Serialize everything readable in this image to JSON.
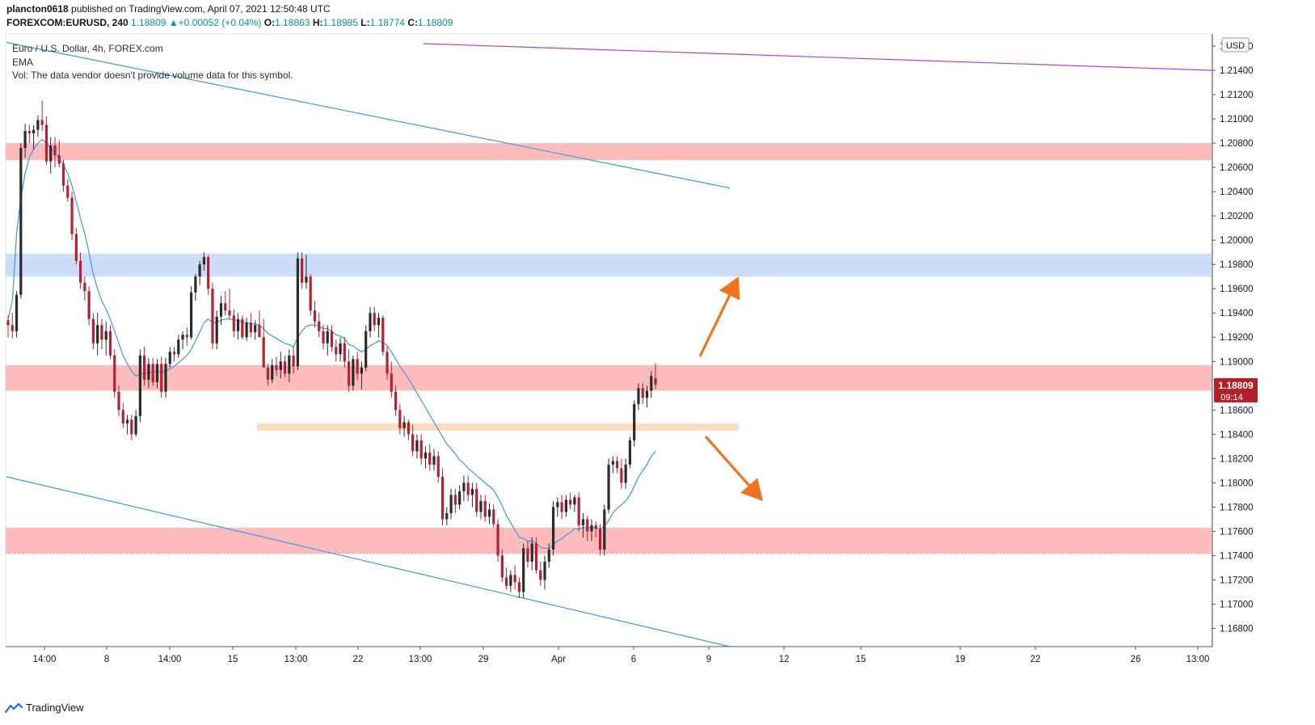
{
  "header": {
    "line1": "plancton0618 published on TradingView.com, April 07, 2021 12:50:48 UTC",
    "symbol": "FOREXCOM:EURUSD, 240",
    "last": "1.18809",
    "change": "+0.00052 (+0.04%)",
    "o_label": "O:",
    "o": "1.18863",
    "h_label": "H:",
    "h": "1.18985",
    "l_label": "L:",
    "l": "1.18774",
    "c_label": "C:",
    "c": "1.18809"
  },
  "legend": {
    "title": "Euro / U.S. Dollar, 4h, FOREX.com",
    "ema": "EMA",
    "vol": "Vol: The data vendor doesn't provide volume data for this symbol."
  },
  "price_badge": {
    "price": "1.18809",
    "countdown": "09:14"
  },
  "currency": "USD",
  "brand": "TradingView",
  "colors": {
    "up_candle": "#2b2b2b",
    "down_candle": "#b22234",
    "ema": "#3a9be8",
    "channel": "#3a9be8",
    "purple_line": "#b041d8",
    "red_zone": "#fdb7b7",
    "blue_zone": "#c9dbf8",
    "orange_zone": "#fcdcbc",
    "arrow": "#f07320",
    "badge": "#b3202a"
  },
  "chart_data": {
    "type": "candlestick",
    "symbol": "FOREXCOM:EURUSD",
    "interval": "240",
    "ylim": [
      1.1665,
      1.217
    ],
    "y_ticks": [
      "1.21600",
      "1.21400",
      "1.21200",
      "1.21000",
      "1.20800",
      "1.20600",
      "1.20400",
      "1.20200",
      "1.20000",
      "1.19800",
      "1.19600",
      "1.19400",
      "1.19200",
      "1.19000",
      "1.18600",
      "1.18400",
      "1.18200",
      "1.18000",
      "1.17800",
      "1.17600",
      "1.17400",
      "1.17200",
      "1.17000",
      "1.16800"
    ],
    "x_ticks": [
      "14:00",
      "8",
      "14:00",
      "15",
      "13:00",
      "22",
      "13:00",
      "29",
      "Apr",
      "6",
      "9",
      "12",
      "15",
      "19",
      "22",
      "26",
      "13:00"
    ],
    "last_price": 1.18809,
    "zones": [
      {
        "color": "red",
        "from": 1.2066,
        "to": 1.208
      },
      {
        "color": "blue",
        "from": 1.197,
        "to": 1.1989
      },
      {
        "color": "red",
        "from": 1.1876,
        "to": 1.1897
      },
      {
        "color": "orange",
        "from": 1.1843,
        "to": 1.1849
      },
      {
        "color": "red",
        "from": 1.1742,
        "to": 1.1763
      }
    ],
    "candles": [
      [
        1.1934,
        1.1938,
        1.192,
        1.193
      ],
      [
        1.193,
        1.194,
        1.1919,
        1.1925
      ],
      [
        1.1925,
        1.1958,
        1.192,
        1.1955
      ],
      [
        1.1955,
        1.208,
        1.1952,
        1.2076
      ],
      [
        1.2076,
        1.2096,
        1.2068,
        1.209
      ],
      [
        1.209,
        1.2095,
        1.208,
        1.2088
      ],
      [
        1.2088,
        1.2095,
        1.2075,
        1.2091
      ],
      [
        1.2091,
        1.2103,
        1.2085,
        1.2099
      ],
      [
        1.2099,
        1.2115,
        1.209,
        1.2095
      ],
      [
        1.2095,
        1.2102,
        1.2062,
        1.2065
      ],
      [
        1.2065,
        1.2085,
        1.2055,
        1.2078
      ],
      [
        1.2078,
        1.2085,
        1.206,
        1.207
      ],
      [
        1.207,
        1.2082,
        1.206,
        1.2063
      ],
      [
        1.2063,
        1.2066,
        1.204,
        1.2045
      ],
      [
        1.2045,
        1.205,
        1.2032,
        1.2035
      ],
      [
        1.2035,
        1.204,
        1.2,
        1.2005
      ],
      [
        1.2005,
        1.201,
        1.198,
        1.1983
      ],
      [
        1.1983,
        1.199,
        1.196,
        1.1965
      ],
      [
        1.1965,
        1.197,
        1.195,
        1.1958
      ],
      [
        1.1958,
        1.1962,
        1.193,
        1.1935
      ],
      [
        1.1935,
        1.194,
        1.191,
        1.1915
      ],
      [
        1.1915,
        1.194,
        1.1905,
        1.193
      ],
      [
        1.193,
        1.1935,
        1.191,
        1.1918
      ],
      [
        1.1918,
        1.1933,
        1.1905,
        1.1925
      ],
      [
        1.1925,
        1.193,
        1.1902,
        1.1905
      ],
      [
        1.1905,
        1.191,
        1.187,
        1.1875
      ],
      [
        1.1875,
        1.188,
        1.1855,
        1.186
      ],
      [
        1.186,
        1.1866,
        1.1845,
        1.1849
      ],
      [
        1.1849,
        1.1856,
        1.184,
        1.1852
      ],
      [
        1.1852,
        1.1856,
        1.1835,
        1.184
      ],
      [
        1.184,
        1.186,
        1.1838,
        1.1855
      ],
      [
        1.1855,
        1.191,
        1.185,
        1.1905
      ],
      [
        1.1905,
        1.1912,
        1.188,
        1.1885
      ],
      [
        1.1885,
        1.1903,
        1.1878,
        1.1898
      ],
      [
        1.1898,
        1.1903,
        1.188,
        1.1883
      ],
      [
        1.1883,
        1.1902,
        1.1878,
        1.1898
      ],
      [
        1.1898,
        1.1904,
        1.187,
        1.1875
      ],
      [
        1.1875,
        1.1903,
        1.187,
        1.1898
      ],
      [
        1.1898,
        1.1912,
        1.1895,
        1.1908
      ],
      [
        1.1908,
        1.1912,
        1.19,
        1.1906
      ],
      [
        1.1906,
        1.1922,
        1.1903,
        1.1918
      ],
      [
        1.1918,
        1.1925,
        1.191,
        1.1922
      ],
      [
        1.1922,
        1.1928,
        1.1913,
        1.192
      ],
      [
        1.192,
        1.1962,
        1.1918,
        1.1957
      ],
      [
        1.1957,
        1.1972,
        1.195,
        1.197
      ],
      [
        1.197,
        1.1983,
        1.1963,
        1.198
      ],
      [
        1.198,
        1.199,
        1.1975,
        1.1986
      ],
      [
        1.1986,
        1.1988,
        1.1955,
        1.196
      ],
      [
        1.196,
        1.1965,
        1.191,
        1.1915
      ],
      [
        1.1915,
        1.1942,
        1.191,
        1.1937
      ],
      [
        1.1937,
        1.1954,
        1.193,
        1.1948
      ],
      [
        1.1948,
        1.1958,
        1.1938,
        1.1942
      ],
      [
        1.1942,
        1.196,
        1.1935,
        1.1938
      ],
      [
        1.1938,
        1.1943,
        1.192,
        1.1925
      ],
      [
        1.1925,
        1.194,
        1.1918,
        1.1935
      ],
      [
        1.1935,
        1.1938,
        1.1918,
        1.192
      ],
      [
        1.192,
        1.1936,
        1.1917,
        1.1932
      ],
      [
        1.1932,
        1.194,
        1.192,
        1.1924
      ],
      [
        1.1924,
        1.1934,
        1.1918,
        1.193
      ],
      [
        1.193,
        1.1942,
        1.1925,
        1.192
      ],
      [
        1.192,
        1.1935,
        1.19,
        1.1895
      ],
      [
        1.1895,
        1.1898,
        1.188,
        1.1885
      ],
      [
        1.1885,
        1.1902,
        1.1882,
        1.1897
      ],
      [
        1.1897,
        1.1904,
        1.1888,
        1.1893
      ],
      [
        1.1893,
        1.1908,
        1.1886,
        1.19
      ],
      [
        1.19,
        1.1905,
        1.1887,
        1.189
      ],
      [
        1.189,
        1.191,
        1.1883,
        1.1905
      ],
      [
        1.1905,
        1.1912,
        1.189,
        1.1896
      ],
      [
        1.1896,
        1.199,
        1.1893,
        1.1985
      ],
      [
        1.1985,
        1.199,
        1.196,
        1.1965
      ],
      [
        1.1965,
        1.1988,
        1.196,
        1.197
      ],
      [
        1.197,
        1.1972,
        1.1938,
        1.1942
      ],
      [
        1.1942,
        1.195,
        1.1928,
        1.1933
      ],
      [
        1.1933,
        1.194,
        1.192,
        1.1925
      ],
      [
        1.1925,
        1.193,
        1.191,
        1.1915
      ],
      [
        1.1915,
        1.193,
        1.1905,
        1.1925
      ],
      [
        1.1925,
        1.193,
        1.1908,
        1.1912
      ],
      [
        1.1912,
        1.1918,
        1.19,
        1.1906
      ],
      [
        1.1906,
        1.192,
        1.19,
        1.1915
      ],
      [
        1.1915,
        1.192,
        1.1895,
        1.19
      ],
      [
        1.19,
        1.191,
        1.1875,
        1.188
      ],
      [
        1.188,
        1.1905,
        1.1876,
        1.1902
      ],
      [
        1.1902,
        1.1908,
        1.1885,
        1.189
      ],
      [
        1.189,
        1.19,
        1.1877,
        1.1895
      ],
      [
        1.1895,
        1.193,
        1.1892,
        1.1925
      ],
      [
        1.1925,
        1.1945,
        1.192,
        1.194
      ],
      [
        1.194,
        1.1945,
        1.1925,
        1.193
      ],
      [
        1.193,
        1.194,
        1.192,
        1.1936
      ],
      [
        1.1936,
        1.1938,
        1.1905,
        1.1908
      ],
      [
        1.1908,
        1.1912,
        1.1885,
        1.189
      ],
      [
        1.189,
        1.19,
        1.187,
        1.1875
      ],
      [
        1.1875,
        1.188,
        1.1855,
        1.186
      ],
      [
        1.186,
        1.1865,
        1.184,
        1.1845
      ],
      [
        1.1845,
        1.1855,
        1.1838,
        1.185
      ],
      [
        1.185,
        1.1852,
        1.1835,
        1.184
      ],
      [
        1.184,
        1.1848,
        1.1822,
        1.1826
      ],
      [
        1.1826,
        1.184,
        1.182,
        1.1835
      ],
      [
        1.1835,
        1.184,
        1.1815,
        1.182
      ],
      [
        1.182,
        1.183,
        1.1812,
        1.1825
      ],
      [
        1.1825,
        1.1832,
        1.181,
        1.1815
      ],
      [
        1.1815,
        1.1828,
        1.181,
        1.1822
      ],
      [
        1.1822,
        1.1826,
        1.18,
        1.1805
      ],
      [
        1.1805,
        1.1812,
        1.1765,
        1.177
      ],
      [
        1.177,
        1.178,
        1.1765,
        1.1775
      ],
      [
        1.1775,
        1.1795,
        1.177,
        1.179
      ],
      [
        1.179,
        1.1795,
        1.1775,
        1.1782
      ],
      [
        1.1782,
        1.1798,
        1.1778,
        1.1793
      ],
      [
        1.1793,
        1.1806,
        1.1785,
        1.18
      ],
      [
        1.18,
        1.1806,
        1.1785,
        1.179
      ],
      [
        1.179,
        1.18,
        1.178,
        1.1795
      ],
      [
        1.1795,
        1.18,
        1.1772,
        1.1776
      ],
      [
        1.1776,
        1.179,
        1.177,
        1.1785
      ],
      [
        1.1785,
        1.179,
        1.1768,
        1.1772
      ],
      [
        1.1772,
        1.1783,
        1.1766,
        1.1778
      ],
      [
        1.1778,
        1.1782,
        1.1763,
        1.1766
      ],
      [
        1.1766,
        1.177,
        1.1735,
        1.174
      ],
      [
        1.174,
        1.1745,
        1.1718,
        1.1722
      ],
      [
        1.1722,
        1.173,
        1.1712,
        1.1715
      ],
      [
        1.1715,
        1.1728,
        1.171,
        1.1724
      ],
      [
        1.1724,
        1.1732,
        1.1712,
        1.1718
      ],
      [
        1.1718,
        1.1722,
        1.1705,
        1.171
      ],
      [
        1.171,
        1.175,
        1.1705,
        1.1746
      ],
      [
        1.1746,
        1.1752,
        1.173,
        1.1735
      ],
      [
        1.1735,
        1.1755,
        1.1728,
        1.175
      ],
      [
        1.175,
        1.1755,
        1.1725,
        1.1728
      ],
      [
        1.1728,
        1.1735,
        1.1715,
        1.172
      ],
      [
        1.172,
        1.174,
        1.1712,
        1.1735
      ],
      [
        1.1735,
        1.175,
        1.173,
        1.1745
      ],
      [
        1.1745,
        1.1785,
        1.174,
        1.178
      ],
      [
        1.178,
        1.1788,
        1.1772,
        1.1784
      ],
      [
        1.1784,
        1.179,
        1.177,
        1.1776
      ],
      [
        1.1776,
        1.179,
        1.1772,
        1.1786
      ],
      [
        1.1786,
        1.1792,
        1.1778,
        1.1782
      ],
      [
        1.1782,
        1.179,
        1.1776,
        1.1788
      ],
      [
        1.1788,
        1.1792,
        1.176,
        1.1765
      ],
      [
        1.1765,
        1.1775,
        1.1755,
        1.177
      ],
      [
        1.177,
        1.1773,
        1.1752,
        1.176
      ],
      [
        1.176,
        1.177,
        1.1752,
        1.1765
      ],
      [
        1.1765,
        1.1768,
        1.1755,
        1.1762
      ],
      [
        1.1762,
        1.1766,
        1.174,
        1.1745
      ],
      [
        1.1745,
        1.1782,
        1.174,
        1.1778
      ],
      [
        1.1778,
        1.182,
        1.1775,
        1.1815
      ],
      [
        1.1815,
        1.1822,
        1.1808,
        1.1818
      ],
      [
        1.1818,
        1.1822,
        1.1808,
        1.1812
      ],
      [
        1.1812,
        1.182,
        1.1795,
        1.18
      ],
      [
        1.18,
        1.182,
        1.1795,
        1.1815
      ],
      [
        1.1815,
        1.1838,
        1.1812,
        1.1835
      ],
      [
        1.1835,
        1.1868,
        1.183,
        1.1865
      ],
      [
        1.1865,
        1.1882,
        1.186,
        1.1878
      ],
      [
        1.1878,
        1.1882,
        1.1865,
        1.187
      ],
      [
        1.187,
        1.188,
        1.1862,
        1.1876
      ],
      [
        1.1876,
        1.1892,
        1.187,
        1.1888
      ],
      [
        1.18863,
        1.18985,
        1.18774,
        1.18809
      ]
    ],
    "ema": [
      1.1935,
      1.195,
      1.2005,
      1.2035,
      1.2055,
      1.2068,
      1.2075,
      1.208,
      1.2083,
      1.208,
      1.2076,
      1.2072,
      1.2068,
      1.2062,
      1.2055,
      1.2045,
      1.2032,
      1.2018,
      1.2005,
      1.199,
      1.1972,
      1.196,
      1.195,
      1.1943,
      1.1935,
      1.1925,
      1.1915,
      1.1905,
      1.1898,
      1.1892,
      1.1888,
      1.189,
      1.189,
      1.1891,
      1.1891,
      1.1892,
      1.1891,
      1.1892,
      1.1894,
      1.1896,
      1.1899,
      1.1902,
      1.1905,
      1.191,
      1.1917,
      1.1924,
      1.1932,
      1.1935,
      1.1932,
      1.1932,
      1.1934,
      1.1935,
      1.1935,
      1.1934,
      1.1934,
      1.1932,
      1.1932,
      1.1931,
      1.1931,
      1.193,
      1.1927,
      1.1923,
      1.1921,
      1.1919,
      1.1917,
      1.1915,
      1.1914,
      1.1912,
      1.192,
      1.1925,
      1.1929,
      1.193,
      1.193,
      1.1929,
      1.1927,
      1.1927,
      1.1925,
      1.1922,
      1.1921,
      1.1919,
      1.1914,
      1.1913,
      1.191,
      1.1908,
      1.191,
      1.1913,
      1.1915,
      1.1917,
      1.1916,
      1.1913,
      1.1908,
      1.1902,
      1.1896,
      1.1891,
      1.1886,
      1.188,
      1.1874,
      1.1868,
      1.1862,
      1.1856,
      1.185,
      1.1844,
      1.1838,
      1.1832,
      1.1828,
      1.1824,
      1.1819,
      1.1816,
      1.1812,
      1.1809,
      1.1806,
      1.1803,
      1.18,
      1.1797,
      1.1794,
      1.1788,
      1.1781,
      1.1773,
      1.1767,
      1.1761,
      1.1755,
      1.1754,
      1.1752,
      1.1752,
      1.175,
      1.1747,
      1.1746,
      1.1746,
      1.1749,
      1.1752,
      1.1754,
      1.1757,
      1.1759,
      1.1762,
      1.1762,
      1.1763,
      1.1763,
      1.1763,
      1.1763,
      1.1762,
      1.1764,
      1.1769,
      1.1775,
      1.1779,
      1.1782,
      1.1785,
      1.179,
      1.1797,
      1.1805,
      1.181,
      1.1815,
      1.1822,
      1.1826
    ],
    "trendlines": [
      {
        "name": "upper-channel",
        "color": "blue",
        "from": [
          0,
          1.2163
        ],
        "to": [
          148,
          1.2043
        ]
      },
      {
        "name": "lower-channel",
        "color": "blue",
        "from": [
          0,
          1.1805
        ],
        "to": [
          148,
          1.1665
        ]
      },
      {
        "name": "purple-line",
        "color": "purple",
        "from": [
          85,
          1.2162
        ],
        "to": [
          246,
          1.214
        ]
      }
    ],
    "scenarios": [
      {
        "direction": "up",
        "from": [
          142,
          1.19
        ],
        "to": [
          150,
          1.1966
        ]
      },
      {
        "direction": "down",
        "from": [
          143,
          1.184
        ],
        "to": [
          155,
          1.1786
        ]
      }
    ],
    "grid": false
  }
}
